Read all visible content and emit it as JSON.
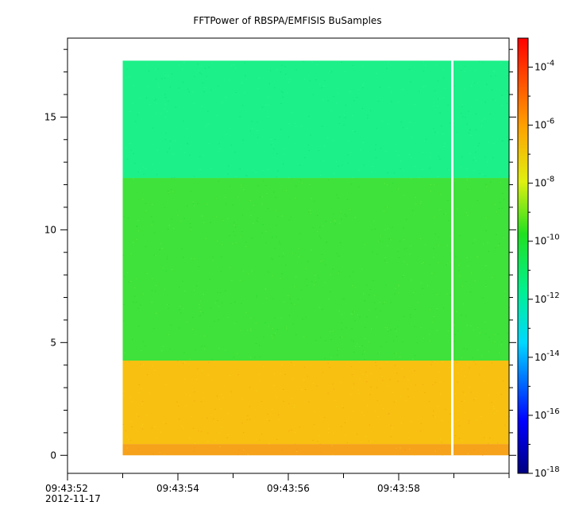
{
  "chart_data": {
    "type": "heatmap",
    "title": "FFTPower of RBSPA/EMFISIS  BuSamples",
    "xlabel": "",
    "ylabel": "",
    "x_range_seconds": [
      "09:43:52",
      "09:44:00"
    ],
    "x_ticks": [
      {
        "label": "09:43:52",
        "date": "2012-11-17"
      },
      {
        "label": "09:43:54"
      },
      {
        "label": "09:43:56"
      },
      {
        "label": "09:43:58"
      }
    ],
    "ylim": [
      -0.8,
      18.5
    ],
    "y_ticks": [
      "0",
      "5",
      "10",
      "15"
    ],
    "data_x_range": [
      "09:43:53",
      "09:44:00"
    ],
    "data_y_range": [
      0,
      17.5
    ],
    "gap_time": "09:43:59",
    "colorbar": {
      "scale": "log",
      "range": [
        "1e-18",
        "1e-3"
      ],
      "ticks": [
        {
          "base": "10",
          "exp": "-4"
        },
        {
          "base": "10",
          "exp": "-6"
        },
        {
          "base": "10",
          "exp": "-8"
        },
        {
          "base": "10",
          "exp": "-10"
        },
        {
          "base": "10",
          "exp": "-12"
        },
        {
          "base": "10",
          "exp": "-14"
        },
        {
          "base": "10",
          "exp": "-16"
        },
        {
          "base": "10",
          "exp": "-18"
        }
      ]
    },
    "bands": [
      {
        "y_from": 0,
        "y_to": 0.5,
        "log_power": -7.4,
        "color": "#f6a21a"
      },
      {
        "y_from": 0.5,
        "y_to": 4.2,
        "log_power": -7.8,
        "color": "#f8c010"
      },
      {
        "y_from": 4.2,
        "y_to": 12.3,
        "log_power": -10.5,
        "color": "#3ee23a"
      },
      {
        "y_from": 12.3,
        "y_to": 17.5,
        "log_power": -12.5,
        "color": "#1cf088"
      }
    ]
  }
}
